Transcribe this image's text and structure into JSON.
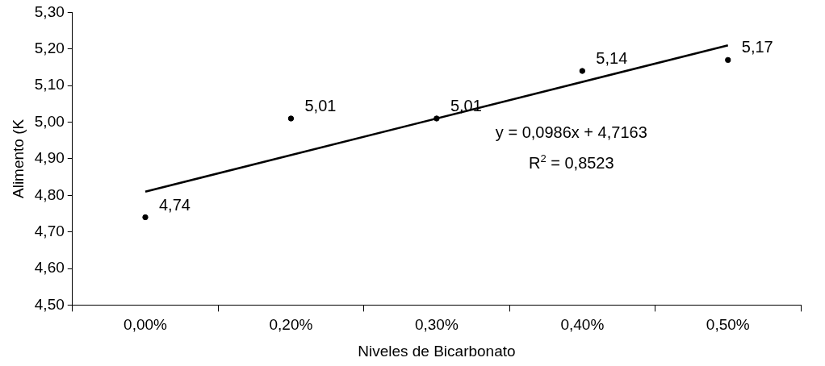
{
  "chart_data": {
    "type": "scatter",
    "xlabel": "Niveles de Bicarbonato",
    "ylabel": "Alimento (K",
    "categories": [
      "0,00%",
      "0,20%",
      "0,30%",
      "0,40%",
      "0,50%"
    ],
    "series": [
      {
        "color": "#000000",
        "values": [
          4.74,
          5.01,
          5.01,
          5.14,
          5.17
        ],
        "value_labels": [
          "4,74",
          "5,01",
          "5,01",
          "5,14",
          "5,17"
        ],
        "marker": "circle"
      },
      {
        "type": "line",
        "color": "#000000",
        "x": [
          "0,00%",
          "0,50%"
        ],
        "values": [
          4.81,
          5.21
        ],
        "marker": "none",
        "line_style": "solid"
      }
    ],
    "ylim": [
      4.5,
      5.3
    ],
    "yticks": [
      {
        "value": 4.5,
        "label": "4,50"
      },
      {
        "value": 4.6,
        "label": "4,60"
      },
      {
        "value": 4.7,
        "label": "4,70"
      },
      {
        "value": 4.8,
        "label": "4,80"
      },
      {
        "value": 4.9,
        "label": "4,90"
      },
      {
        "value": 5.0,
        "label": "5,00"
      },
      {
        "value": 5.1,
        "label": "5,10"
      },
      {
        "value": 5.2,
        "label": "5,20"
      },
      {
        "value": 5.3,
        "label": "5,30"
      }
    ],
    "annotations": [
      "y = 0,0986x + 4,7163",
      "R$^{2}$ = 0,8523"
    ],
    "grid": false,
    "legend": false
  }
}
